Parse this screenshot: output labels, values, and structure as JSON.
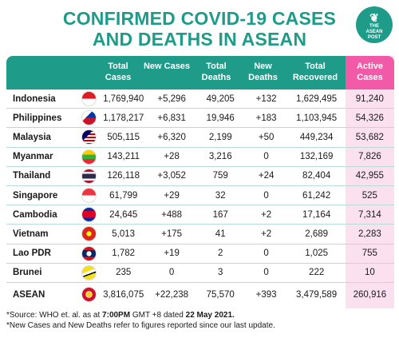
{
  "title": {
    "line1": "CONFIRMED COVID-19 CASES",
    "line2": "AND DEATHS IN ASEAN"
  },
  "logo": {
    "text1": "THE",
    "text2": "ASEAN",
    "text3": "POST"
  },
  "columns": [
    "Total Cases",
    "New Cases",
    "Total Deaths",
    "New Deaths",
    "Total Recovered",
    "Active Cases"
  ],
  "rows": [
    {
      "country": "Indonesia",
      "flag": "flag-indonesia",
      "total_cases": "1,769,940",
      "new_cases": "+5,296",
      "total_deaths": "49,205",
      "new_deaths": "+132",
      "recovered": "1,629,495",
      "active": "91,240"
    },
    {
      "country": "Philippines",
      "flag": "flag-philippines",
      "total_cases": "1,178,217",
      "new_cases": "+6,831",
      "total_deaths": "19,946",
      "new_deaths": "+183",
      "recovered": "1,103,945",
      "active": "54,326"
    },
    {
      "country": "Malaysia",
      "flag": "flag-malaysia",
      "total_cases": "505,115",
      "new_cases": "+6,320",
      "total_deaths": "2,199",
      "new_deaths": "+50",
      "recovered": "449,234",
      "active": "53,682"
    },
    {
      "country": "Myanmar",
      "flag": "flag-myanmar",
      "total_cases": "143,211",
      "new_cases": "+28",
      "total_deaths": "3,216",
      "new_deaths": "0",
      "recovered": "132,169",
      "active": "7,826"
    },
    {
      "country": "Thailand",
      "flag": "flag-thailand",
      "total_cases": "126,118",
      "new_cases": "+3,052",
      "total_deaths": "759",
      "new_deaths": "+24",
      "recovered": "82,404",
      "active": "42,955"
    },
    {
      "country": "Singapore",
      "flag": "flag-singapore",
      "total_cases": "61,799",
      "new_cases": "+29",
      "total_deaths": "32",
      "new_deaths": "0",
      "recovered": "61,242",
      "active": "525"
    },
    {
      "country": "Cambodia",
      "flag": "flag-cambodia",
      "total_cases": "24,645",
      "new_cases": "+488",
      "total_deaths": "167",
      "new_deaths": "+2",
      "recovered": "17,164",
      "active": "7,314"
    },
    {
      "country": "Vietnam",
      "flag": "flag-vietnam",
      "total_cases": "5,013",
      "new_cases": "+175",
      "total_deaths": "41",
      "new_deaths": "+2",
      "recovered": "2,689",
      "active": "2,283"
    },
    {
      "country": "Lao PDR",
      "flag": "flag-laos",
      "total_cases": "1,782",
      "new_cases": "+19",
      "total_deaths": "2",
      "new_deaths": "0",
      "recovered": "1,025",
      "active": "755"
    },
    {
      "country": "Brunei",
      "flag": "flag-brunei",
      "total_cases": "235",
      "new_cases": "0",
      "total_deaths": "3",
      "new_deaths": "0",
      "recovered": "222",
      "active": "10"
    },
    {
      "country": "ASEAN",
      "flag": "flag-asean",
      "total_cases": "3,816,075",
      "new_cases": "+22,238",
      "total_deaths": "75,570",
      "new_deaths": "+393",
      "recovered": "3,479,589",
      "active": "260,916"
    }
  ],
  "source": {
    "line1_a": "*Source: WHO et. al. as at ",
    "line1_b": "7:00PM",
    "line1_c": " GMT +8 dated ",
    "line1_d": "22 May 2021.",
    "line2": "*New Cases and New Deaths refer to figures reported since our last update."
  },
  "colors": {
    "teal": "#1f9b8a",
    "pink": "#f25aa8",
    "pink_light": "#fbe0f0"
  }
}
